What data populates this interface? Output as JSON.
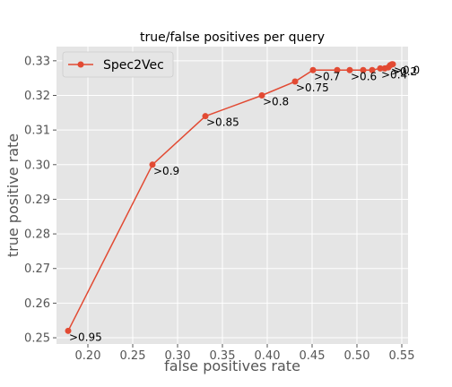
{
  "chart_data": {
    "type": "line",
    "title": "true/false positives per query",
    "xlabel": "false positives rate",
    "ylabel": "true positive rate",
    "xlim": [
      0.165,
      0.557
    ],
    "ylim": [
      0.2482,
      0.3341
    ],
    "xticks": [
      0.2,
      0.25,
      0.3,
      0.35,
      0.4,
      0.45,
      0.5,
      0.55
    ],
    "xtick_labels": [
      "0.20",
      "0.25",
      "0.30",
      "0.35",
      "0.40",
      "0.45",
      "0.50",
      "0.55"
    ],
    "yticks": [
      0.25,
      0.26,
      0.27,
      0.28,
      0.29,
      0.3,
      0.31,
      0.32,
      0.33
    ],
    "ytick_labels": [
      "0.25",
      "0.26",
      "0.27",
      "0.28",
      "0.29",
      "0.30",
      "0.31",
      "0.32",
      "0.33"
    ],
    "grid": true,
    "legend_position": "top-left",
    "series": [
      {
        "name": "Spec2Vec",
        "color": "#E24A33",
        "points": [
          {
            "x": 0.178,
            "y": 0.252,
            "label": ">0.95"
          },
          {
            "x": 0.272,
            "y": 0.3,
            "label": ">0.9"
          },
          {
            "x": 0.331,
            "y": 0.314,
            "label": ">0.85"
          },
          {
            "x": 0.394,
            "y": 0.32,
            "label": ">0.8"
          },
          {
            "x": 0.431,
            "y": 0.324,
            "label": ">0.75"
          },
          {
            "x": 0.451,
            "y": 0.3273,
            "label": ">0.7"
          },
          {
            "x": 0.478,
            "y": 0.3273,
            "label": ""
          },
          {
            "x": 0.492,
            "y": 0.3273,
            "label": ">0.6"
          },
          {
            "x": 0.507,
            "y": 0.3273,
            "label": ""
          },
          {
            "x": 0.517,
            "y": 0.3273,
            "label": ""
          },
          {
            "x": 0.526,
            "y": 0.3278,
            "label": ">0.4"
          },
          {
            "x": 0.531,
            "y": 0.3278,
            "label": ""
          },
          {
            "x": 0.535,
            "y": 0.3281,
            "label": ""
          },
          {
            "x": 0.537,
            "y": 0.3287,
            "label": ">0.2"
          },
          {
            "x": 0.539,
            "y": 0.329,
            "label": ""
          },
          {
            "x": 0.54,
            "y": 0.329,
            "label": ">0.0"
          }
        ]
      }
    ]
  }
}
